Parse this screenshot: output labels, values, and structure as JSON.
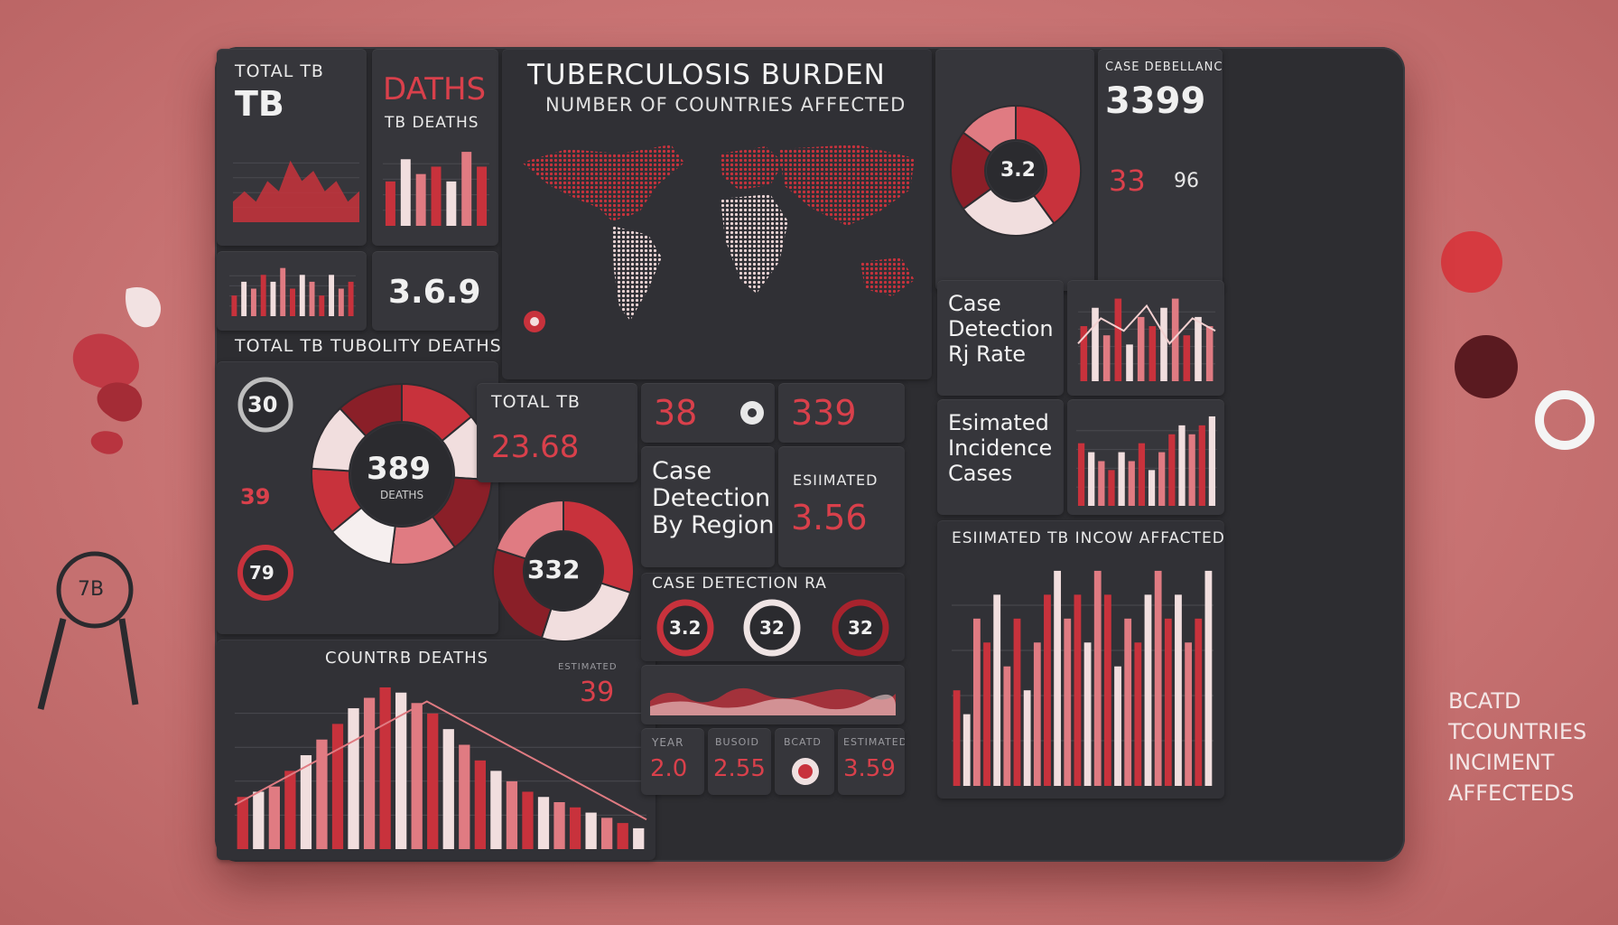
{
  "header": {
    "title": "TUBERCULOSIS BURDEN",
    "subtitle": "NUMBER OF COUNTRIES AFFECTED"
  },
  "colors": {
    "accent": "#c8323c",
    "dark": "#2d2d31",
    "panel": "#36363b",
    "pale": "#f1dede",
    "deep": "#8a1f28"
  },
  "top_left": {
    "label_small": "TOTAL TB",
    "label_big": "TB"
  },
  "deaths_panel": {
    "title": "DATHS",
    "subtitle": "TB DEATHS"
  },
  "mini_metric": {
    "value": "3.6.9"
  },
  "section_label_1": "TOTAL TB TUBOLITY DEATHS",
  "left_badges": {
    "top": "30",
    "mid": "39",
    "bottom": "79"
  },
  "main_donut": {
    "value": "389",
    "label": "DEATHS"
  },
  "map_badge": {
    "icon": "location-pin-icon"
  },
  "total_by_country": {
    "title": "TOTAL TB",
    "value": "23.68"
  },
  "metric_cells": {
    "a": "38",
    "b": "339"
  },
  "case_detection_region": {
    "title_lines": [
      "Case",
      "Detection",
      "By Region"
    ]
  },
  "estimated_cell": {
    "label": "ESIIMATED",
    "value": "3.56"
  },
  "right_top": {
    "label": "CASE DEBELLANCE",
    "value": "3399"
  },
  "ring_chart": {
    "value": "3.2"
  },
  "right_mid_values": {
    "a": "33",
    "b": "96"
  },
  "case_detection_rate": {
    "title_lines": [
      "Case",
      "Detection",
      "Rj Rate"
    ]
  },
  "estimated_incidence": {
    "title_lines": [
      "Esimated",
      "Incidence",
      "Cases"
    ]
  },
  "bottom_left_label": "COUNTRB DEATHS",
  "donut_332": {
    "value": "332"
  },
  "side_value": {
    "label": "ESTIMATED",
    "value": "39"
  },
  "case_detection_row": {
    "title": "CASE DETECTION RA",
    "rings": [
      "3.2",
      "32",
      "32"
    ]
  },
  "stats_row": [
    {
      "label": "YEAR",
      "value": "2.0"
    },
    {
      "label": "BUSOID",
      "value": "2.55"
    },
    {
      "label": "BCATD",
      "value": ""
    },
    {
      "label": "ESTIMATED",
      "value": "3.59"
    }
  ],
  "bottom_right_label": "ESIIMATED TB INCOW AFFACTED",
  "magnifier_label": "7B",
  "side_caption": [
    "BCATD",
    "TCOUNTRIES",
    "INCIMENT",
    "AFFECTEDS"
  ],
  "chart_data": [
    {
      "type": "area",
      "x": [
        1,
        2,
        3,
        4,
        5,
        6,
        7,
        8,
        9,
        10,
        11,
        12
      ],
      "values": [
        2,
        3,
        2,
        4,
        3,
        6,
        4,
        5,
        3,
        4,
        2,
        3
      ]
    },
    {
      "type": "bar",
      "values": [
        6,
        9,
        7,
        8,
        6,
        10,
        8
      ]
    },
    {
      "type": "bar",
      "values": [
        3,
        5,
        4,
        6,
        5,
        7,
        4,
        6,
        5,
        3,
        6,
        4,
        5
      ]
    },
    {
      "type": "pie",
      "values": [
        14,
        12,
        14,
        12,
        12,
        12,
        12,
        12
      ]
    },
    {
      "type": "bar",
      "values": [
        10,
        11,
        12,
        15,
        18,
        21,
        24,
        27,
        29,
        31,
        30,
        28,
        26,
        23,
        20,
        17,
        15,
        13,
        11,
        10,
        9,
        8,
        7,
        6,
        5,
        4
      ]
    },
    {
      "type": "line",
      "values": [
        3,
        4,
        5,
        6,
        7,
        8,
        9,
        10,
        9,
        8,
        7,
        6,
        5,
        4,
        3,
        2
      ]
    },
    {
      "type": "pie",
      "values": [
        30,
        25,
        25,
        20
      ]
    },
    {
      "type": "pie",
      "values": [
        40,
        25,
        20,
        15
      ]
    },
    {
      "type": "line",
      "values": [
        3,
        5,
        4,
        6,
        3,
        5,
        4
      ]
    },
    {
      "type": "bar",
      "values": [
        6,
        8,
        5,
        9,
        4,
        7,
        6,
        8,
        9,
        5,
        7,
        6
      ]
    },
    {
      "type": "bar",
      "values": [
        7,
        6,
        5,
        4,
        6,
        5,
        7,
        4,
        6,
        8,
        9,
        8,
        9,
        10
      ]
    },
    {
      "type": "bar",
      "values": [
        4,
        3,
        7,
        6,
        8,
        5,
        7,
        4,
        6,
        8,
        9,
        7,
        8,
        6,
        9,
        8,
        5,
        7,
        6,
        8,
        9,
        7,
        8,
        6,
        7,
        9
      ]
    }
  ]
}
